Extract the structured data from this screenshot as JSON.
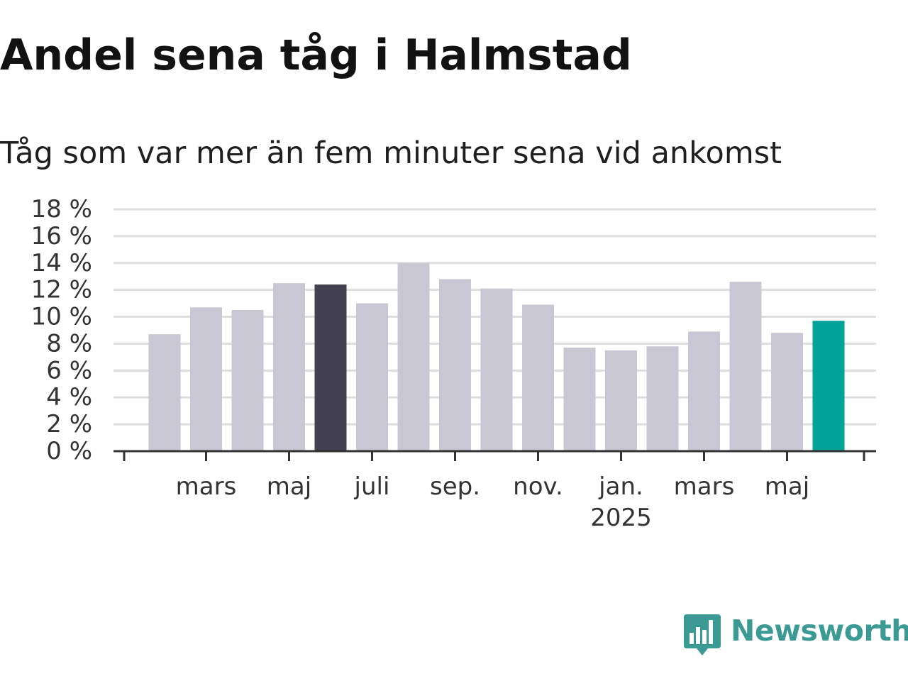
{
  "title": "Andel sena tåg i Halmstad",
  "subtitle": "Tåg som var mer än fem minuter sena vid ankomst",
  "brand": {
    "name": "Newsworthy",
    "color": "#3c9a95",
    "icon": "newsworthy-logo-icon"
  },
  "colors": {
    "bar_default": "#c8c7d3",
    "bar_highlight_dark": "#43414f",
    "bar_highlight_latest": "#00a39a",
    "grid": "#dedede",
    "axis": "#333333"
  },
  "chart_data": {
    "type": "bar",
    "title": "Andel sena tåg i Halmstad",
    "subtitle": "Tåg som var mer än fem minuter sena vid ankomst",
    "xlabel": "",
    "ylabel": "",
    "ylim": [
      0,
      18
    ],
    "yticks": [
      0,
      2,
      4,
      6,
      8,
      10,
      12,
      14,
      16,
      18
    ],
    "ytick_labels": [
      "0 %",
      "2 %",
      "4 %",
      "6 %",
      "8 %",
      "10 %",
      "12 %",
      "14 %",
      "16 %",
      "18 %"
    ],
    "grid": true,
    "categories": [
      "2024-02",
      "2024-03",
      "2024-04",
      "2024-05",
      "2024-06",
      "2024-07",
      "2024-08",
      "2024-09",
      "2024-10",
      "2024-11",
      "2024-12",
      "2025-01",
      "2025-02",
      "2025-03",
      "2025-04",
      "2025-05",
      "2025-06"
    ],
    "values": [
      8.7,
      10.7,
      10.5,
      12.5,
      12.4,
      11.0,
      14.0,
      12.8,
      12.1,
      10.9,
      7.7,
      7.5,
      7.8,
      8.9,
      12.6,
      8.8,
      9.7
    ],
    "highlight": {
      "2024-06": "dark",
      "2025-06": "latest"
    },
    "x_tick_labels": [
      {
        "at": "2024-03",
        "label": "mars"
      },
      {
        "at": "2024-05",
        "label": "maj"
      },
      {
        "at": "2024-07",
        "label": "juli"
      },
      {
        "at": "2024-09",
        "label": "sep."
      },
      {
        "at": "2024-11",
        "label": "nov."
      },
      {
        "at": "2025-01",
        "label": "jan.",
        "sublabel": "2025"
      },
      {
        "at": "2025-03",
        "label": "mars"
      },
      {
        "at": "2025-05",
        "label": "maj"
      }
    ]
  }
}
